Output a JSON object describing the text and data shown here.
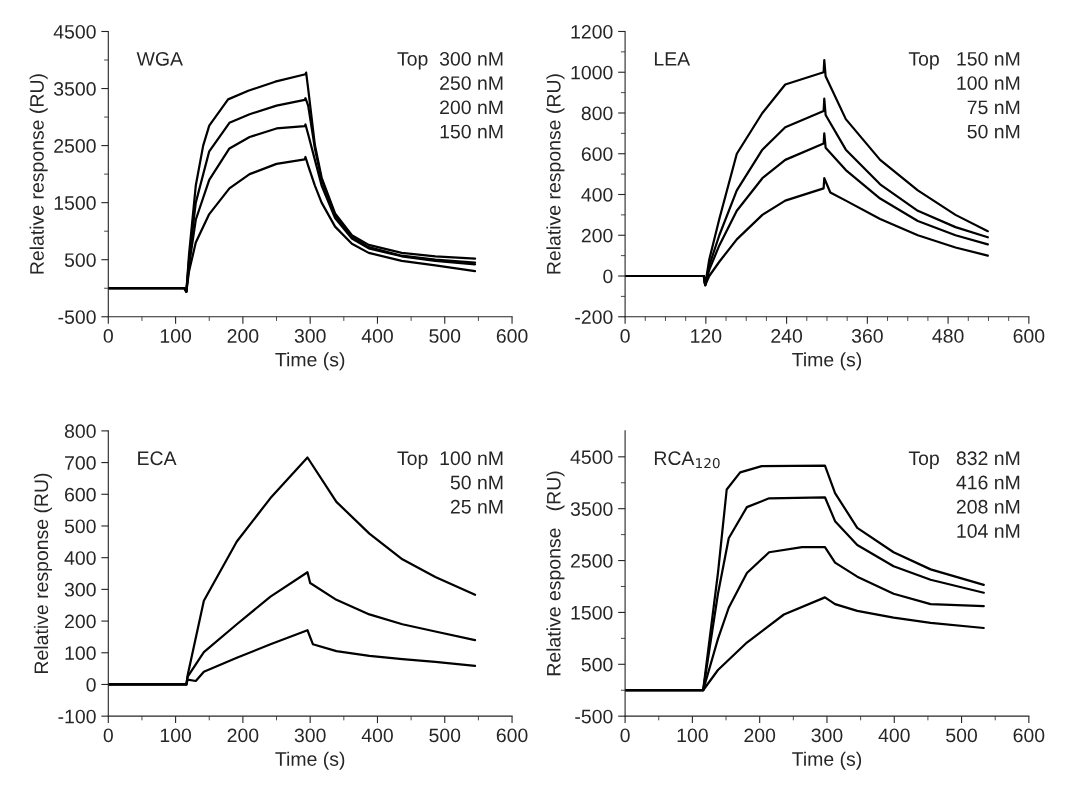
{
  "chart_data": [
    {
      "type": "line",
      "xlabel": "Time (s)",
      "ylabel": "Relative response (RU)",
      "xlim": [
        0,
        600
      ],
      "ylim": [
        -500,
        4500
      ],
      "xticks": [
        0,
        {
          "value": 50,
          "label": null
        },
        100,
        {
          "value": 150,
          "label": null
        },
        200,
        {
          "value": 250,
          "label": null
        },
        300,
        {
          "value": 350,
          "label": null
        },
        400,
        {
          "value": 450,
          "label": null
        },
        500,
        {
          "value": 550,
          "label": null
        },
        600
      ],
      "yticks": [
        -500,
        {
          "value": 0,
          "label": null
        },
        500,
        {
          "value": 1000,
          "label": null
        },
        1500,
        {
          "value": 2000,
          "label": null
        },
        2500,
        {
          "value": 3000,
          "label": null
        },
        3500,
        {
          "value": 4000,
          "label": null
        },
        4500
      ],
      "annotations": [
        "WGA",
        "Top  300 nM",
        "250 nM",
        "200 nM",
        "150 nM"
      ],
      "grid": false,
      "marker": "none",
      "line_style": "solid",
      "series": [
        {
          "color": "#000000",
          "x": [
            0,
            113,
            116,
            120,
            130,
            141,
            150,
            178,
            208,
            248,
            293,
            294,
            297,
            307,
            317,
            337,
            362,
            387,
            436,
            486,
            545
          ],
          "values": [
            0,
            0,
            -60,
            600,
            1800,
            2500,
            2850,
            3310,
            3460,
            3620,
            3750,
            3780,
            3500,
            2510,
            1940,
            1310,
            930,
            760,
            620,
            560,
            520
          ]
        },
        {
          "color": "#000000",
          "x": [
            0,
            113,
            116,
            120,
            130,
            150,
            180,
            210,
            250,
            292,
            293,
            297,
            307,
            317,
            337,
            362,
            387,
            436,
            486,
            545
          ],
          "values": [
            0,
            0,
            -60,
            500,
            1500,
            2400,
            2900,
            3050,
            3200,
            3300,
            3330,
            3200,
            2450,
            1900,
            1280,
            900,
            720,
            570,
            500,
            450
          ]
        },
        {
          "color": "#000000",
          "x": [
            0,
            113,
            116,
            120,
            130,
            150,
            180,
            210,
            250,
            292,
            293,
            297,
            307,
            317,
            337,
            362,
            387,
            436,
            486,
            545
          ],
          "values": [
            0,
            0,
            -60,
            400,
            1200,
            1900,
            2450,
            2650,
            2800,
            2840,
            2870,
            2700,
            2250,
            1800,
            1230,
            870,
            700,
            560,
            480,
            420
          ]
        },
        {
          "color": "#000000",
          "x": [
            0,
            113,
            116,
            120,
            130,
            150,
            180,
            210,
            250,
            292,
            293,
            297,
            307,
            317,
            337,
            362,
            387,
            436,
            486,
            545
          ],
          "values": [
            0,
            0,
            -60,
            300,
            800,
            1300,
            1750,
            2000,
            2180,
            2260,
            2300,
            2150,
            1800,
            1500,
            1080,
            780,
            620,
            480,
            400,
            300
          ]
        }
      ]
    },
    {
      "type": "line",
      "xlabel": "Time (s)",
      "ylabel": "Relative response (RU)",
      "xlim": [
        0,
        600
      ],
      "ylim": [
        -200,
        1200
      ],
      "xticks": [
        0,
        {
          "value": 30,
          "label": null
        },
        {
          "value": 60,
          "label": null
        },
        {
          "value": 90,
          "label": null
        },
        120,
        {
          "value": 150,
          "label": null
        },
        {
          "value": 180,
          "label": null
        },
        {
          "value": 210,
          "label": null
        },
        240,
        {
          "value": 270,
          "label": null
        },
        {
          "value": 300,
          "label": null
        },
        {
          "value": 330,
          "label": null
        },
        360,
        {
          "value": 390,
          "label": null
        },
        {
          "value": 420,
          "label": null
        },
        {
          "value": 450,
          "label": null
        },
        480,
        {
          "value": 510,
          "label": null
        },
        {
          "value": 540,
          "label": null
        },
        {
          "value": 570,
          "label": null
        },
        600
      ],
      "yticks": [
        -200,
        {
          "value": -100,
          "label": null
        },
        0,
        {
          "value": 100,
          "label": null
        },
        200,
        {
          "value": 300,
          "label": null
        },
        400,
        {
          "value": 500,
          "label": null
        },
        600,
        {
          "value": 700,
          "label": null
        },
        800,
        {
          "value": 900,
          "label": null
        },
        1000,
        {
          "value": 1100,
          "label": null
        },
        1200
      ],
      "annotations": [
        "LEA",
        "Top   150 nM",
        "100 nM",
        "75 nM",
        "50 nM"
      ],
      "grid": false,
      "marker": "none",
      "line_style": "solid",
      "series": [
        {
          "color": "#000000",
          "x": [
            0,
            117,
            119,
            125,
            140,
            166,
            204,
            238,
            295,
            296,
            298,
            328,
            379,
            435,
            491,
            539
          ],
          "values": [
            0,
            0,
            -45,
            80,
            280,
            600,
            800,
            940,
            1000,
            1060,
            980,
            770,
            570,
            420,
            300,
            220
          ]
        },
        {
          "color": "#000000",
          "x": [
            0,
            117,
            119,
            125,
            140,
            166,
            204,
            238,
            295,
            296,
            298,
            328,
            379,
            435,
            491,
            539
          ],
          "values": [
            0,
            0,
            -45,
            50,
            200,
            420,
            620,
            730,
            810,
            870,
            790,
            620,
            450,
            320,
            240,
            190
          ]
        },
        {
          "color": "#000000",
          "x": [
            0,
            117,
            119,
            125,
            140,
            166,
            204,
            238,
            295,
            296,
            298,
            328,
            379,
            435,
            491,
            539
          ],
          "values": [
            0,
            0,
            -45,
            30,
            150,
            320,
            480,
            570,
            650,
            700,
            630,
            520,
            380,
            270,
            200,
            155
          ]
        },
        {
          "color": "#000000",
          "x": [
            0,
            117,
            119,
            125,
            140,
            166,
            204,
            238,
            295,
            296,
            305,
            328,
            379,
            435,
            491,
            539
          ],
          "values": [
            0,
            0,
            -45,
            0,
            70,
            180,
            300,
            370,
            430,
            480,
            410,
            370,
            280,
            200,
            140,
            100
          ]
        }
      ]
    },
    {
      "type": "line",
      "xlabel": "Time (s)",
      "ylabel": "Relative response (RU)",
      "xlim": [
        0,
        600
      ],
      "ylim": [
        -100,
        800
      ],
      "xticks": [
        0,
        {
          "value": 50,
          "label": null
        },
        100,
        {
          "value": 150,
          "label": null
        },
        200,
        {
          "value": 250,
          "label": null
        },
        300,
        {
          "value": 350,
          "label": null
        },
        400,
        {
          "value": 450,
          "label": null
        },
        500,
        {
          "value": 550,
          "label": null
        },
        600
      ],
      "yticks": [
        -100,
        0,
        100,
        200,
        300,
        400,
        500,
        600,
        700,
        800
      ],
      "annotations": [
        "ECA",
        "Top  100 nM",
        "50 nM",
        "25 nM"
      ],
      "grid": false,
      "marker": "none",
      "line_style": "solid",
      "series": [
        {
          "color": "#000000",
          "x": [
            0,
            116,
            118,
            142,
            191,
            241,
            296,
            339,
            388,
            437,
            486,
            545
          ],
          "values": [
            0,
            0,
            30,
            264,
            451,
            588,
            716,
            576,
            476,
            395,
            339,
            283
          ]
        },
        {
          "color": "#000000",
          "x": [
            0,
            116,
            118,
            142,
            191,
            241,
            296,
            300,
            339,
            388,
            437,
            486,
            545
          ],
          "values": [
            0,
            0,
            25,
            102,
            190,
            277,
            354,
            320,
            267,
            221,
            190,
            167,
            140
          ]
        },
        {
          "color": "#000000",
          "x": [
            0,
            116,
            118,
            130,
            142,
            191,
            241,
            296,
            304,
            339,
            388,
            437,
            486,
            545
          ],
          "values": [
            0,
            0,
            15,
            11,
            40,
            84,
            127,
            171,
            127,
            105,
            90,
            80,
            71,
            59
          ]
        }
      ]
    },
    {
      "type": "line",
      "xlabel": "Time (s)",
      "ylabel": "Relative esponse   (RU)",
      "xlim": [
        0,
        600
      ],
      "ylim": [
        -500,
        5000
      ],
      "xticks": [
        0,
        {
          "value": 50,
          "label": null
        },
        100,
        {
          "value": 150,
          "label": null
        },
        200,
        {
          "value": 250,
          "label": null
        },
        300,
        {
          "value": 350,
          "label": null
        },
        400,
        {
          "value": 450,
          "label": null
        },
        500,
        {
          "value": 550,
          "label": null
        },
        600
      ],
      "yticks": [
        -500,
        {
          "value": 0,
          "label": null
        },
        500,
        {
          "value": 1000,
          "label": null
        },
        1500,
        {
          "value": 2000,
          "label": null
        },
        2500,
        {
          "value": 3000,
          "label": null
        },
        3500,
        {
          "value": 4000,
          "label": null
        },
        4500
      ],
      "annotations": [
        "RCA$_{120}$",
        "Top   832 nM",
        "416 nM",
        "208 nM",
        "104 nM"
      ],
      "grid": false,
      "marker": "none",
      "line_style": "solid",
      "series": [
        {
          "color": "#000000",
          "x": [
            0,
            116,
            138,
            151,
            171,
            203,
            297,
            312,
            345,
            399,
            454,
            533
          ],
          "values": [
            0,
            0,
            2260,
            3870,
            4200,
            4320,
            4330,
            3800,
            3130,
            2660,
            2330,
            2030
          ]
        },
        {
          "color": "#000000",
          "x": [
            0,
            116,
            138,
            154,
            181,
            214,
            297,
            312,
            345,
            399,
            454,
            533
          ],
          "values": [
            0,
            0,
            1860,
            2930,
            3530,
            3700,
            3720,
            3260,
            2800,
            2390,
            2130,
            1880
          ]
        },
        {
          "color": "#000000",
          "x": [
            0,
            116,
            138,
            154,
            181,
            214,
            263,
            297,
            312,
            345,
            399,
            454,
            533
          ],
          "values": [
            0,
            0,
            990,
            1590,
            2260,
            2660,
            2760,
            2760,
            2460,
            2190,
            1860,
            1660,
            1620
          ]
        },
        {
          "color": "#000000",
          "x": [
            0,
            116,
            138,
            181,
            236,
            297,
            312,
            345,
            399,
            454,
            533
          ],
          "values": [
            0,
            0,
            390,
            920,
            1460,
            1790,
            1660,
            1530,
            1400,
            1300,
            1200
          ]
        }
      ]
    }
  ]
}
